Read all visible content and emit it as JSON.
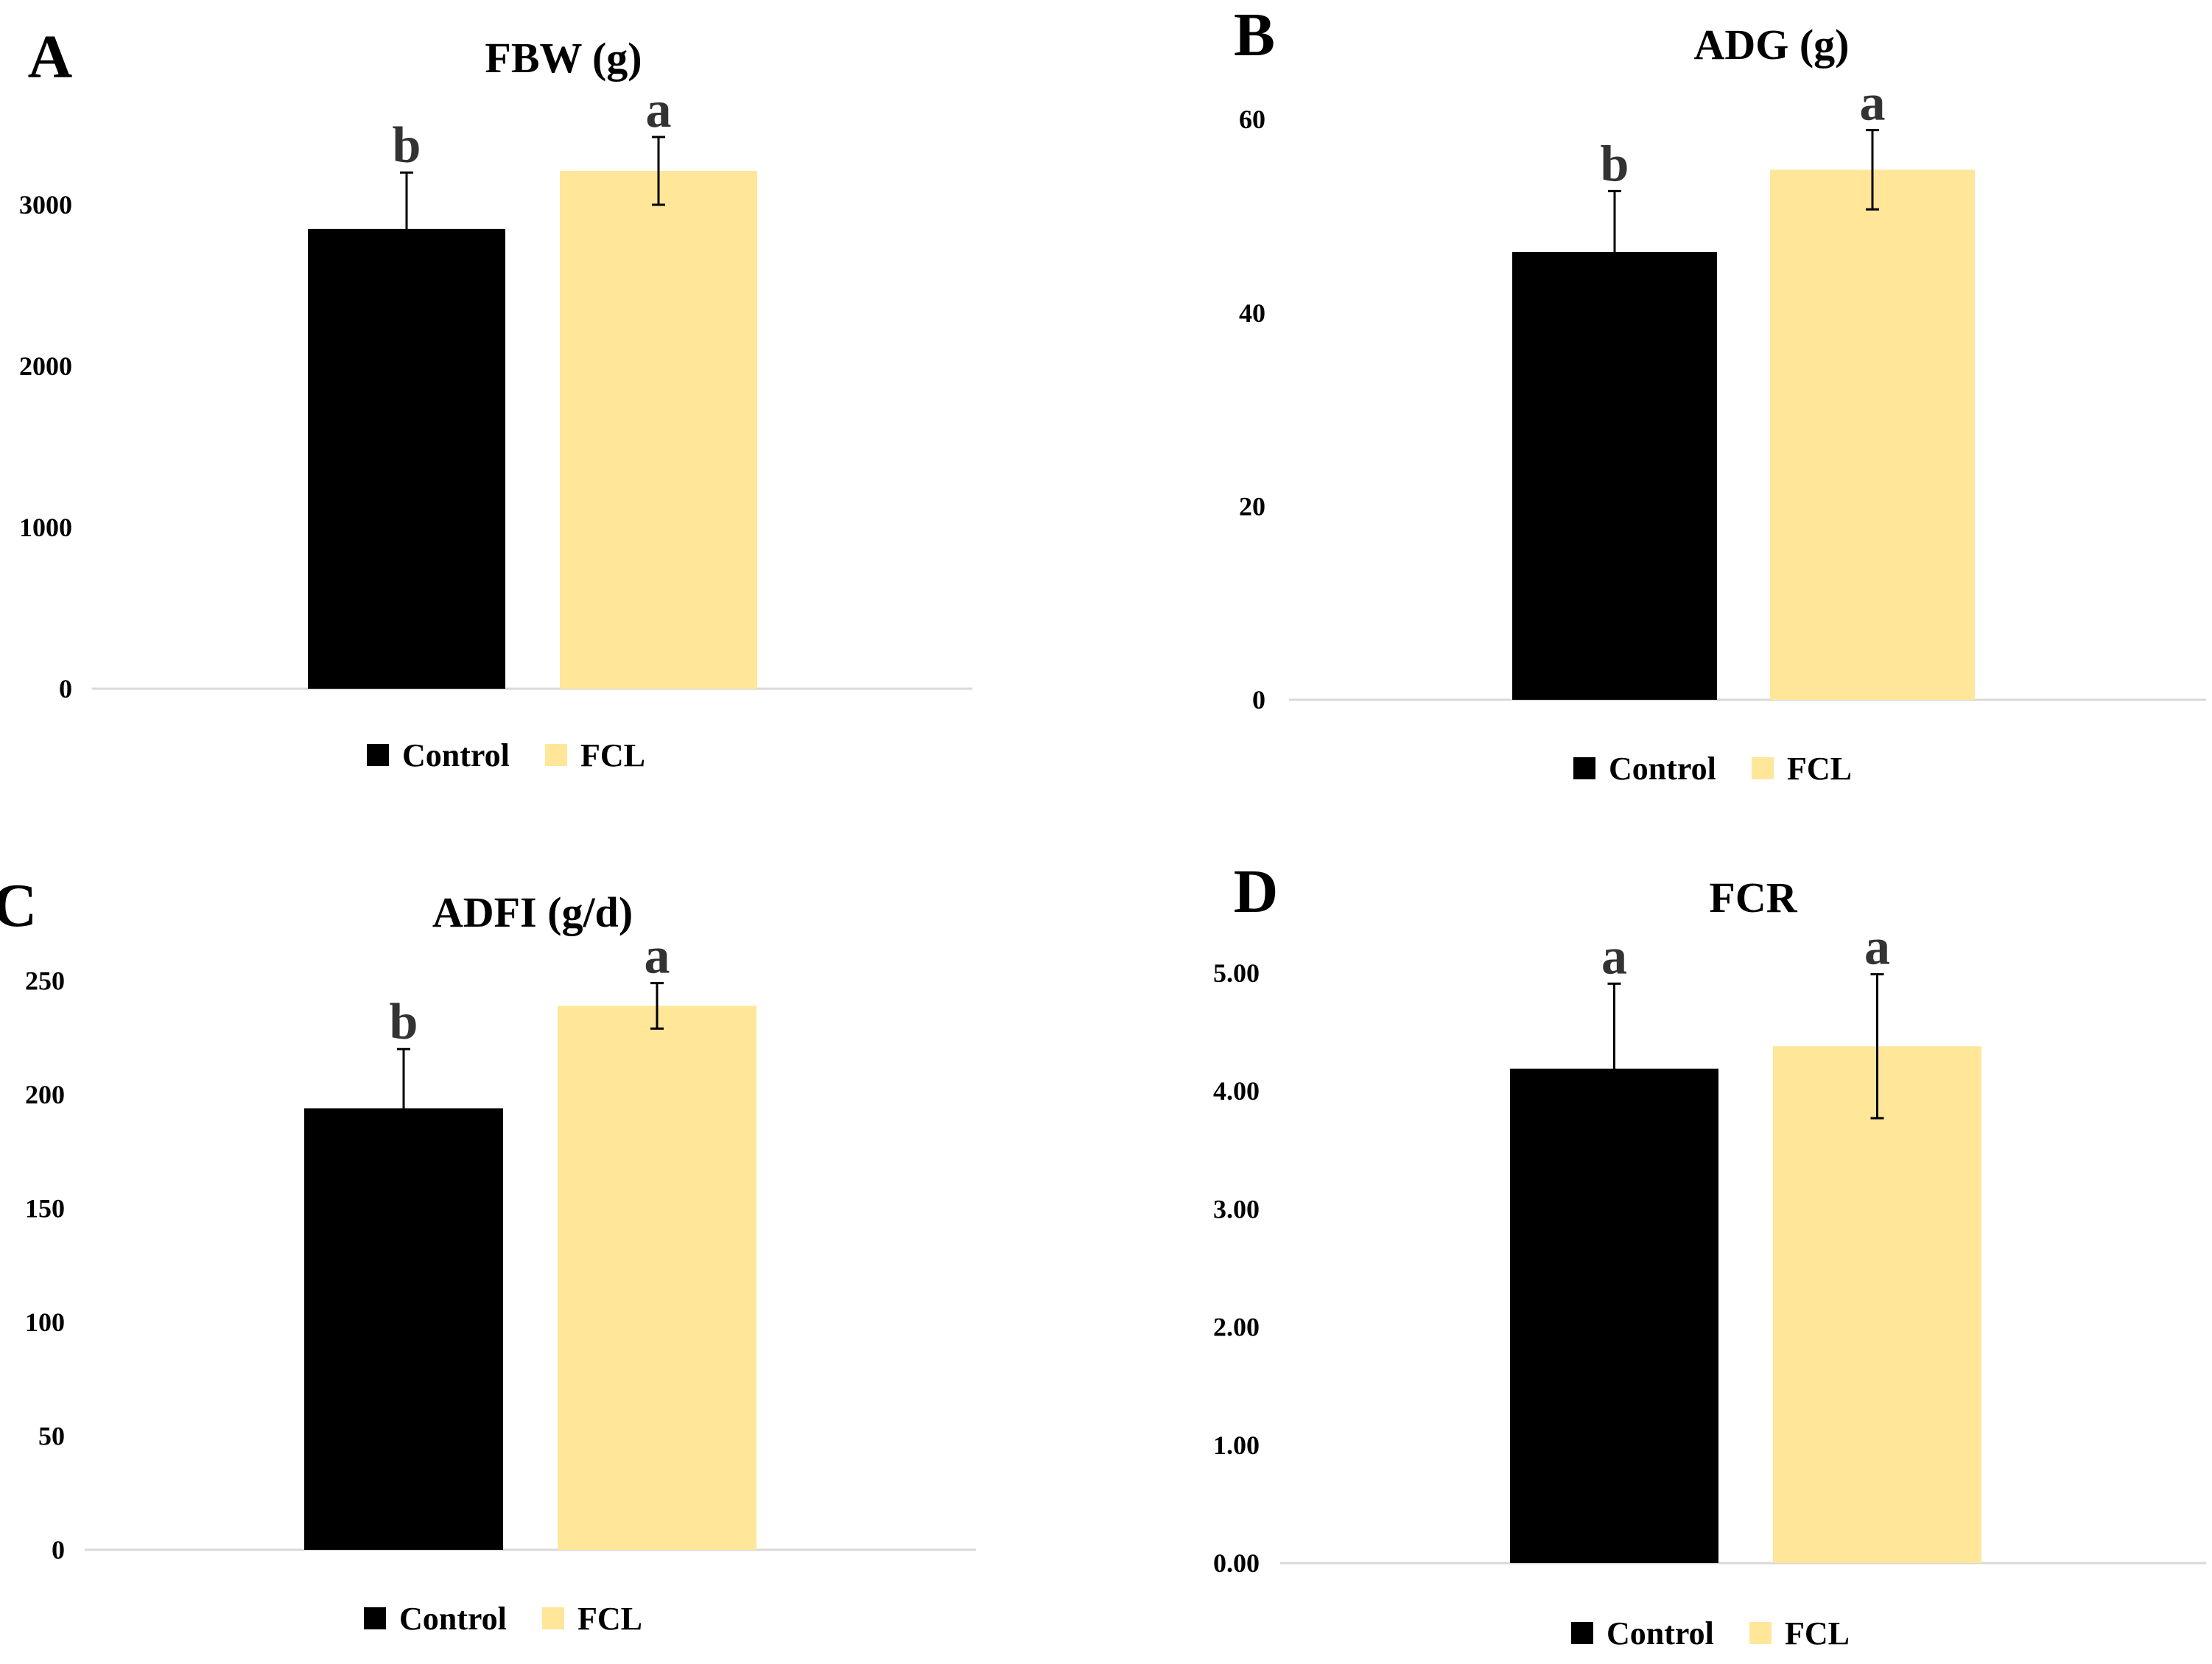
{
  "colors": {
    "control": "#000000",
    "fcl": "#FFE699",
    "axis": "#D9D9D9",
    "text": "#000000",
    "significance": "#333333"
  },
  "legend": {
    "labels": [
      "Control",
      "FCL"
    ],
    "placement": "bottom-center"
  },
  "chart_data": [
    {
      "type": "bar",
      "panel": "A",
      "title": "FBW (g)",
      "series": [
        {
          "name": "Control",
          "value": 2850,
          "error": 350,
          "significance": "b"
        },
        {
          "name": "FCL",
          "value": 3210,
          "error": 210,
          "significance": "a"
        }
      ],
      "ylim": [
        0,
        3500
      ],
      "yticks": [
        0,
        1000,
        2000,
        3000
      ],
      "ytick_labels": [
        "0",
        "1000",
        "2000",
        "3000"
      ],
      "grid": false,
      "legend": "bottom-center"
    },
    {
      "type": "bar",
      "panel": "B",
      "title": "ADG (g)",
      "series": [
        {
          "name": "Control",
          "value": 46.3,
          "error": 6.3,
          "significance": "b"
        },
        {
          "name": "FCL",
          "value": 54.8,
          "error": 4.1,
          "significance": "a"
        }
      ],
      "ylim": [
        0,
        60
      ],
      "yticks": [
        0,
        20,
        40,
        60
      ],
      "ytick_labels": [
        "0",
        "20",
        "40",
        "60"
      ],
      "grid": false,
      "legend": "bottom-center"
    },
    {
      "type": "bar",
      "panel": "C",
      "title": "ADFI (g/d)",
      "series": [
        {
          "name": "Control",
          "value": 194,
          "error": 26,
          "significance": "b"
        },
        {
          "name": "FCL",
          "value": 239,
          "error": 10,
          "significance": "a"
        }
      ],
      "ylim": [
        0,
        250
      ],
      "yticks": [
        0,
        50,
        100,
        150,
        200,
        250
      ],
      "ytick_labels": [
        "0",
        "50",
        "100",
        "150",
        "200",
        "250"
      ],
      "grid": false,
      "legend": "bottom-center"
    },
    {
      "type": "bar",
      "panel": "D",
      "title": "FCR",
      "series": [
        {
          "name": "Control",
          "value": 4.19,
          "error": 0.72,
          "significance": "a"
        },
        {
          "name": "FCL",
          "value": 4.38,
          "error": 0.61,
          "significance": "a"
        }
      ],
      "ylim": [
        0,
        5
      ],
      "yticks": [
        0,
        1,
        2,
        3,
        4,
        5
      ],
      "ytick_labels": [
        "0.00",
        "1.00",
        "2.00",
        "3.00",
        "4.00",
        "5.00"
      ],
      "grid": false,
      "legend": "bottom-center"
    }
  ]
}
